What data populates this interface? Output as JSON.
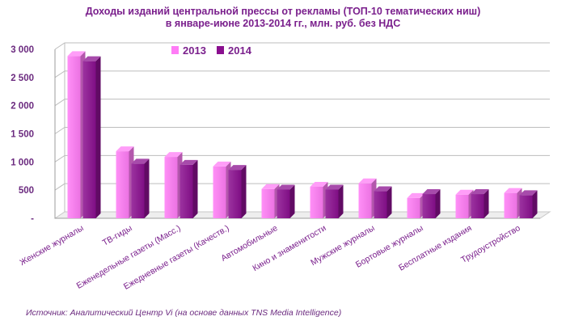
{
  "chart_data": {
    "type": "bar",
    "title": "Доходы изданий центральной прессы от рекламы (ТОП-10 тематических ниш)",
    "subtitle": "в  январе-июне 2013-2014 гг., млн. руб.  без НДС",
    "categories": [
      "Женские журналы",
      "ТВ-гиды",
      "Еженедельные газеты (Масс.)",
      "Ежедневные газеты (Качеств.)",
      "Автомобильные",
      "Кино и знаменитости",
      "Мужские журналы",
      "Бортовые журналы",
      "Бесплатные издания",
      "Трудоустройство"
    ],
    "series": [
      {
        "name": "2013",
        "color": "#ff7cf6",
        "values": [
          2880,
          1190,
          1090,
          920,
          520,
          560,
          620,
          360,
          420,
          450
        ]
      },
      {
        "name": "2014",
        "color": "#8a0f8f",
        "values": [
          2790,
          970,
          950,
          860,
          510,
          510,
          480,
          430,
          430,
          410
        ]
      }
    ],
    "yticks": [
      "-",
      "500",
      "1 000",
      "1 500",
      "2 000",
      "2 500",
      "3 000"
    ],
    "ylim": [
      0,
      3000
    ],
    "grid": true,
    "legend_position": "top-left",
    "source": "Источник: Аналитический Центр Vi (на основе данных TNS Media Intelligence)"
  }
}
